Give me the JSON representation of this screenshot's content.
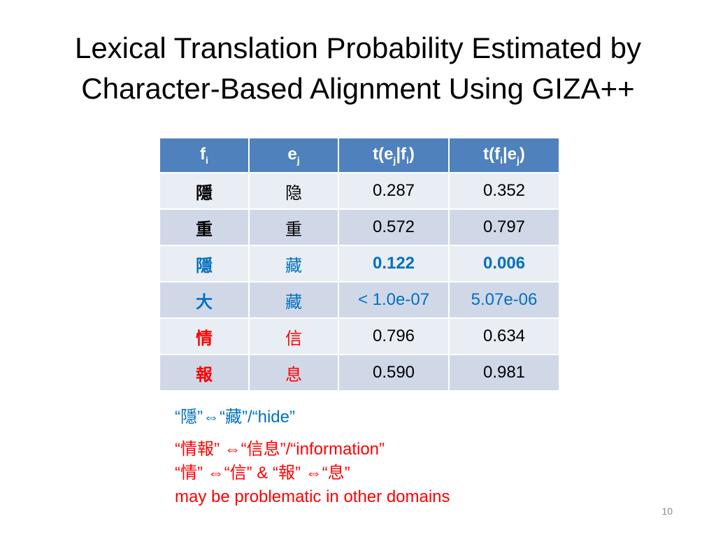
{
  "title": {
    "line1": "Lexical Translation Probability Estimated by",
    "line2": "Character-Based Alignment Using GIZA++"
  },
  "table": {
    "headers": {
      "f_base": "f",
      "f_sub": "i",
      "e_base": "e",
      "e_sub": "j",
      "t1": [
        "t(e",
        "j",
        "|f",
        "i",
        ")"
      ],
      "t2": [
        "t(f",
        "i",
        "|e",
        "j",
        ")"
      ]
    },
    "rows": [
      {
        "f": "隱",
        "e": "隐",
        "t_e_f": "0.287",
        "t_f_e": "0.352"
      },
      {
        "f": "重",
        "e": "重",
        "t_e_f": "0.572",
        "t_f_e": "0.797"
      },
      {
        "f": "隱",
        "e": "藏",
        "t_e_f": "0.122",
        "t_f_e": "0.006"
      },
      {
        "f": "大",
        "e": "藏",
        "t_e_f": "< 1.0e-07",
        "t_f_e": "5.07e-06"
      },
      {
        "f": "情",
        "e": "信",
        "t_e_f": "0.796",
        "t_f_e": "0.634"
      },
      {
        "f": "報",
        "e": "息",
        "t_e_f": "0.590",
        "t_f_e": "0.981"
      }
    ]
  },
  "notes": {
    "line1": "“隱”⇔“藏”/“hide”",
    "line2": "“情報” ⇔“信息”/“information”",
    "line3": "“情” ⇔“信” & “報” ⇔“息”",
    "line4": "may be problematic in other domains"
  },
  "page_number": "10",
  "colors": {
    "header_bg": "#4f81bd",
    "row_odd": "#d0d8e8",
    "row_even": "#e9edf4",
    "blue": "#0070c0",
    "red": "#ff0000"
  }
}
